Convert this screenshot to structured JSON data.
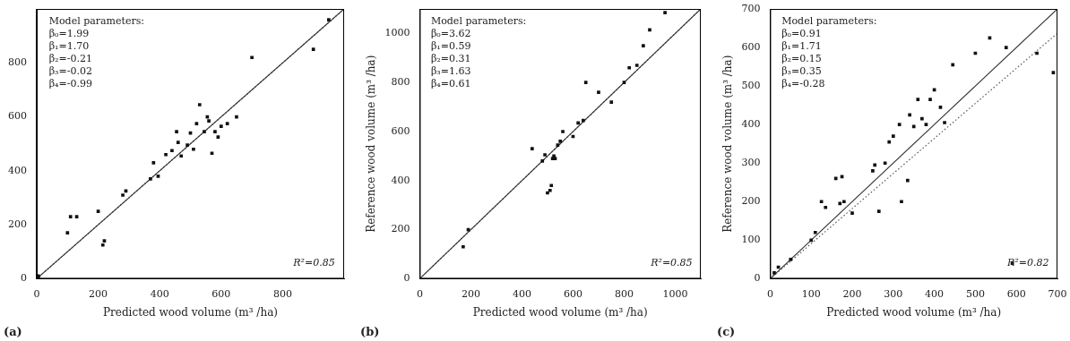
{
  "chart_data": [
    {
      "type": "scatter",
      "panel_label": "(a)",
      "xlabel": "Predicted wood volume (m³ /ha)",
      "xlim": [
        0,
        1000
      ],
      "ylim": [
        0,
        1000
      ],
      "xticks": [
        0,
        200,
        400,
        600,
        800
      ],
      "yticks": [
        0,
        200,
        400,
        600,
        800
      ],
      "grid": false,
      "parameters": [
        "Model parameters:",
        "β₀=1.99",
        "β₁=1.70",
        "β₂=-0.21",
        "β₃=-0.02",
        "β₄=-0.99"
      ],
      "r2": "R²=0.85",
      "series": [
        {
          "type": "line",
          "line_style": "dotted",
          "color": "#555555",
          "x": [
            0,
            1000
          ],
          "values": [
            0,
            1000
          ]
        },
        {
          "type": "line",
          "line_style": "solid",
          "color": "#333333",
          "x": [
            0,
            1000
          ],
          "values": [
            0,
            1000
          ]
        },
        {
          "type": "scatter",
          "marker": "square",
          "color": "#111111",
          "x": [
            5,
            5,
            100,
            110,
            130,
            200,
            215,
            220,
            280,
            290,
            370,
            380,
            395,
            420,
            440,
            455,
            460,
            470,
            490,
            500,
            510,
            520,
            530,
            545,
            555,
            560,
            570,
            580,
            590,
            600,
            620,
            650,
            700,
            900,
            950
          ],
          "values": [
            5,
            10,
            170,
            230,
            230,
            250,
            125,
            140,
            310,
            325,
            370,
            430,
            380,
            460,
            475,
            545,
            505,
            455,
            495,
            540,
            480,
            575,
            645,
            545,
            600,
            585,
            465,
            545,
            525,
            565,
            575,
            600,
            820,
            850,
            960
          ]
        }
      ]
    },
    {
      "type": "scatter",
      "panel_label": "(b)",
      "xlabel": "Predicted wood volume (m³ /ha)",
      "ylabel": "Reference wood volume (m³ /ha)",
      "xlim": [
        0,
        1100
      ],
      "ylim": [
        0,
        1100
      ],
      "xticks": [
        0,
        200,
        400,
        600,
        800,
        1000
      ],
      "yticks": [
        0,
        200,
        400,
        600,
        800,
        1000
      ],
      "grid": false,
      "parameters": [
        "Model parameters:",
        "β₀=3.62",
        "β₁=0.59",
        "β₂=0.31",
        "β₃=1.63",
        "β₄=0.61"
      ],
      "r2": "R²=0.85",
      "series": [
        {
          "type": "line",
          "line_style": "dotted",
          "color": "#555555",
          "x": [
            0,
            1100
          ],
          "values": [
            0,
            1100
          ]
        },
        {
          "type": "line",
          "line_style": "solid",
          "color": "#333333",
          "x": [
            0,
            1100
          ],
          "values": [
            0,
            1100
          ]
        },
        {
          "type": "scatter",
          "marker": "square",
          "color": "#111111",
          "x": [
            170,
            190,
            440,
            480,
            490,
            500,
            510,
            515,
            520,
            525,
            530,
            540,
            550,
            560,
            600,
            620,
            640,
            650,
            700,
            750,
            800,
            820,
            850,
            875,
            900,
            960
          ],
          "values": [
            130,
            200,
            530,
            480,
            505,
            350,
            360,
            380,
            490,
            500,
            490,
            545,
            560,
            600,
            580,
            635,
            645,
            800,
            760,
            720,
            800,
            860,
            870,
            950,
            1015,
            1085
          ]
        }
      ]
    },
    {
      "type": "scatter",
      "panel_label": "(c)",
      "xlabel": "Predicted wood volume (m³ /ha)",
      "ylabel": "Reference wood volume (m³ /ha)",
      "xlim": [
        0,
        700
      ],
      "ylim": [
        0,
        700
      ],
      "xticks": [
        0,
        100,
        200,
        300,
        400,
        500,
        600,
        700
      ],
      "yticks": [
        0,
        100,
        200,
        300,
        400,
        500,
        600,
        700
      ],
      "grid": false,
      "parameters": [
        "Model parameters:",
        "β₀=0.91",
        "β₁=1.71",
        "β₂=0.15",
        "β₃=0.35",
        "β₄=-0.28"
      ],
      "r2": "R²=0.82",
      "series": [
        {
          "type": "line",
          "line_style": "dotted",
          "color": "#555555",
          "x": [
            0,
            700
          ],
          "values": [
            0,
            637
          ]
        },
        {
          "type": "line",
          "line_style": "solid",
          "color": "#333333",
          "x": [
            0,
            700
          ],
          "values": [
            0,
            700
          ]
        },
        {
          "type": "scatter",
          "marker": "square",
          "color": "#111111",
          "x": [
            10,
            20,
            50,
            100,
            110,
            125,
            135,
            160,
            170,
            175,
            180,
            200,
            250,
            255,
            265,
            280,
            290,
            300,
            315,
            320,
            335,
            340,
            350,
            360,
            370,
            380,
            390,
            400,
            415,
            425,
            445,
            500,
            535,
            575,
            590,
            650,
            690
          ],
          "values": [
            15,
            30,
            50,
            100,
            120,
            200,
            185,
            260,
            195,
            265,
            200,
            170,
            280,
            295,
            175,
            300,
            355,
            370,
            400,
            200,
            255,
            425,
            395,
            465,
            415,
            400,
            465,
            490,
            445,
            405,
            555,
            585,
            625,
            600,
            40,
            585,
            535
          ]
        }
      ]
    }
  ]
}
